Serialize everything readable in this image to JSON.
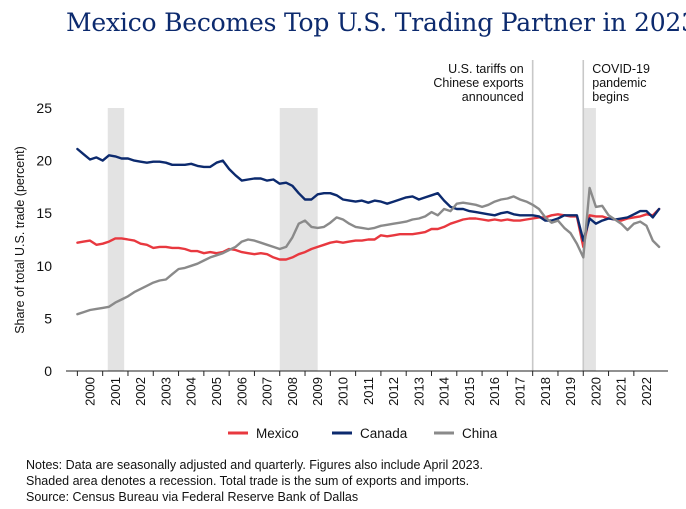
{
  "title": "Mexico Becomes Top U.S. Trading Partner in 2023",
  "notes": [
    "Notes: Data are seasonally adjusted and quarterly. Figures also include April 2023.",
    "Shaded area denotes a recession. Total trade is the sum of exports and imports.",
    "Source: Census Bureau via Federal Reserve Bank of Dallas"
  ],
  "colors": {
    "mexico": "#e8383f",
    "canada": "#0c2a6e",
    "china": "#8a8a8a",
    "recession": "#e3e3e3",
    "marker": "#c8c8c8"
  },
  "chart_data": {
    "type": "line",
    "ylabel": "Share of total U.S. trade (percent)",
    "xlabel": "",
    "ylim": [
      0,
      25
    ],
    "xlim": [
      1999.55,
      2023.35
    ],
    "yticks": [
      0,
      5,
      10,
      15,
      20,
      25
    ],
    "xticks": [
      "2000",
      "2001",
      "2002",
      "2003",
      "2004",
      "2005",
      "2006",
      "2007",
      "2008",
      "2009",
      "2010",
      "2011",
      "2012",
      "2013",
      "2014",
      "2015",
      "2016",
      "2017",
      "2018",
      "2019",
      "2020",
      "2021",
      "2022"
    ],
    "grid": false,
    "legend_position": "bottom",
    "recessions": [
      [
        2001.2,
        2001.85
      ],
      [
        2008.0,
        2009.5
      ],
      [
        2020.0,
        2020.5
      ]
    ],
    "annotations": [
      {
        "x": 2018.0,
        "lines": [
          "U.S. tariffs on",
          "Chinese exports",
          "announced"
        ],
        "align": "right"
      },
      {
        "x": 2020.0,
        "lines": [
          "COVID-19",
          "pandemic",
          "begins"
        ],
        "align": "left"
      }
    ],
    "x": [
      2000.0,
      2000.25,
      2000.5,
      2000.75,
      2001.0,
      2001.25,
      2001.5,
      2001.75,
      2002.0,
      2002.25,
      2002.5,
      2002.75,
      2003.0,
      2003.25,
      2003.5,
      2003.75,
      2004.0,
      2004.25,
      2004.5,
      2004.75,
      2005.0,
      2005.25,
      2005.5,
      2005.75,
      2006.0,
      2006.25,
      2006.5,
      2006.75,
      2007.0,
      2007.25,
      2007.5,
      2007.75,
      2008.0,
      2008.25,
      2008.5,
      2008.75,
      2009.0,
      2009.25,
      2009.5,
      2009.75,
      2010.0,
      2010.25,
      2010.5,
      2010.75,
      2011.0,
      2011.25,
      2011.5,
      2011.75,
      2012.0,
      2012.25,
      2012.5,
      2012.75,
      2013.0,
      2013.25,
      2013.5,
      2013.75,
      2014.0,
      2014.25,
      2014.5,
      2014.75,
      2015.0,
      2015.25,
      2015.5,
      2015.75,
      2016.0,
      2016.25,
      2016.5,
      2016.75,
      2017.0,
      2017.25,
      2017.5,
      2017.75,
      2018.0,
      2018.25,
      2018.5,
      2018.75,
      2019.0,
      2019.25,
      2019.5,
      2019.75,
      2020.0,
      2020.25,
      2020.5,
      2020.75,
      2021.0,
      2021.25,
      2021.5,
      2021.75,
      2022.0,
      2022.25,
      2022.5,
      2022.75,
      2023.0
    ],
    "series": [
      {
        "name": "Mexico",
        "color": "#e8383f",
        "values": [
          12.2,
          12.3,
          12.4,
          12.0,
          12.1,
          12.3,
          12.6,
          12.6,
          12.5,
          12.4,
          12.1,
          12.0,
          11.7,
          11.8,
          11.8,
          11.7,
          11.7,
          11.6,
          11.4,
          11.4,
          11.2,
          11.3,
          11.2,
          11.3,
          11.6,
          11.5,
          11.3,
          11.2,
          11.1,
          11.2,
          11.1,
          10.8,
          10.6,
          10.6,
          10.8,
          11.1,
          11.3,
          11.6,
          11.8,
          12.0,
          12.2,
          12.3,
          12.2,
          12.3,
          12.4,
          12.4,
          12.5,
          12.5,
          12.9,
          12.8,
          12.9,
          13.0,
          13.0,
          13.0,
          13.1,
          13.2,
          13.5,
          13.5,
          13.7,
          14.0,
          14.2,
          14.4,
          14.5,
          14.5,
          14.4,
          14.3,
          14.4,
          14.3,
          14.4,
          14.3,
          14.3,
          14.4,
          14.5,
          14.6,
          14.6,
          14.8,
          14.9,
          14.8,
          14.7,
          14.7,
          11.8,
          14.8,
          14.7,
          14.7,
          14.5,
          14.4,
          14.3,
          14.5,
          14.6,
          14.7,
          14.9,
          14.8,
          15.4
        ]
      },
      {
        "name": "Canada",
        "color": "#0c2a6e",
        "values": [
          21.1,
          20.6,
          20.1,
          20.3,
          20.0,
          20.5,
          20.4,
          20.2,
          20.2,
          20.0,
          19.9,
          19.8,
          19.9,
          19.9,
          19.8,
          19.6,
          19.6,
          19.6,
          19.7,
          19.5,
          19.4,
          19.4,
          19.8,
          20.0,
          19.2,
          18.6,
          18.1,
          18.2,
          18.3,
          18.3,
          18.1,
          18.2,
          17.8,
          17.9,
          17.6,
          16.9,
          16.3,
          16.3,
          16.8,
          16.9,
          16.9,
          16.7,
          16.3,
          16.2,
          16.1,
          16.2,
          16.0,
          16.2,
          16.1,
          15.9,
          16.1,
          16.3,
          16.5,
          16.6,
          16.3,
          16.5,
          16.7,
          16.9,
          16.2,
          15.6,
          15.4,
          15.4,
          15.2,
          15.1,
          15.0,
          14.9,
          14.8,
          15.0,
          15.1,
          14.9,
          14.8,
          14.8,
          14.8,
          14.7,
          14.3,
          14.3,
          14.5,
          14.8,
          14.8,
          14.8,
          12.4,
          14.5,
          14.0,
          14.3,
          14.5,
          14.4,
          14.5,
          14.6,
          14.9,
          15.2,
          15.2,
          14.6,
          15.4
        ]
      },
      {
        "name": "China",
        "color": "#8a8a8a",
        "values": [
          5.4,
          5.6,
          5.8,
          5.9,
          6.0,
          6.1,
          6.5,
          6.8,
          7.1,
          7.5,
          7.8,
          8.1,
          8.4,
          8.6,
          8.7,
          9.2,
          9.7,
          9.8,
          10.0,
          10.2,
          10.5,
          10.8,
          11.0,
          11.2,
          11.5,
          11.8,
          12.3,
          12.5,
          12.4,
          12.2,
          12.0,
          11.8,
          11.6,
          11.8,
          12.7,
          14.0,
          14.3,
          13.7,
          13.6,
          13.7,
          14.1,
          14.6,
          14.4,
          14.0,
          13.7,
          13.6,
          13.5,
          13.6,
          13.8,
          13.9,
          14.0,
          14.1,
          14.2,
          14.4,
          14.5,
          14.7,
          15.1,
          14.8,
          15.4,
          15.2,
          15.9,
          16.0,
          15.9,
          15.8,
          15.6,
          15.8,
          16.1,
          16.3,
          16.4,
          16.6,
          16.3,
          16.1,
          15.8,
          15.4,
          14.6,
          14.1,
          14.3,
          13.6,
          13.1,
          12.1,
          10.8,
          17.4,
          15.6,
          15.7,
          14.8,
          14.4,
          14.0,
          13.4,
          14.0,
          14.2,
          13.8,
          12.4,
          11.8
        ]
      }
    ]
  }
}
